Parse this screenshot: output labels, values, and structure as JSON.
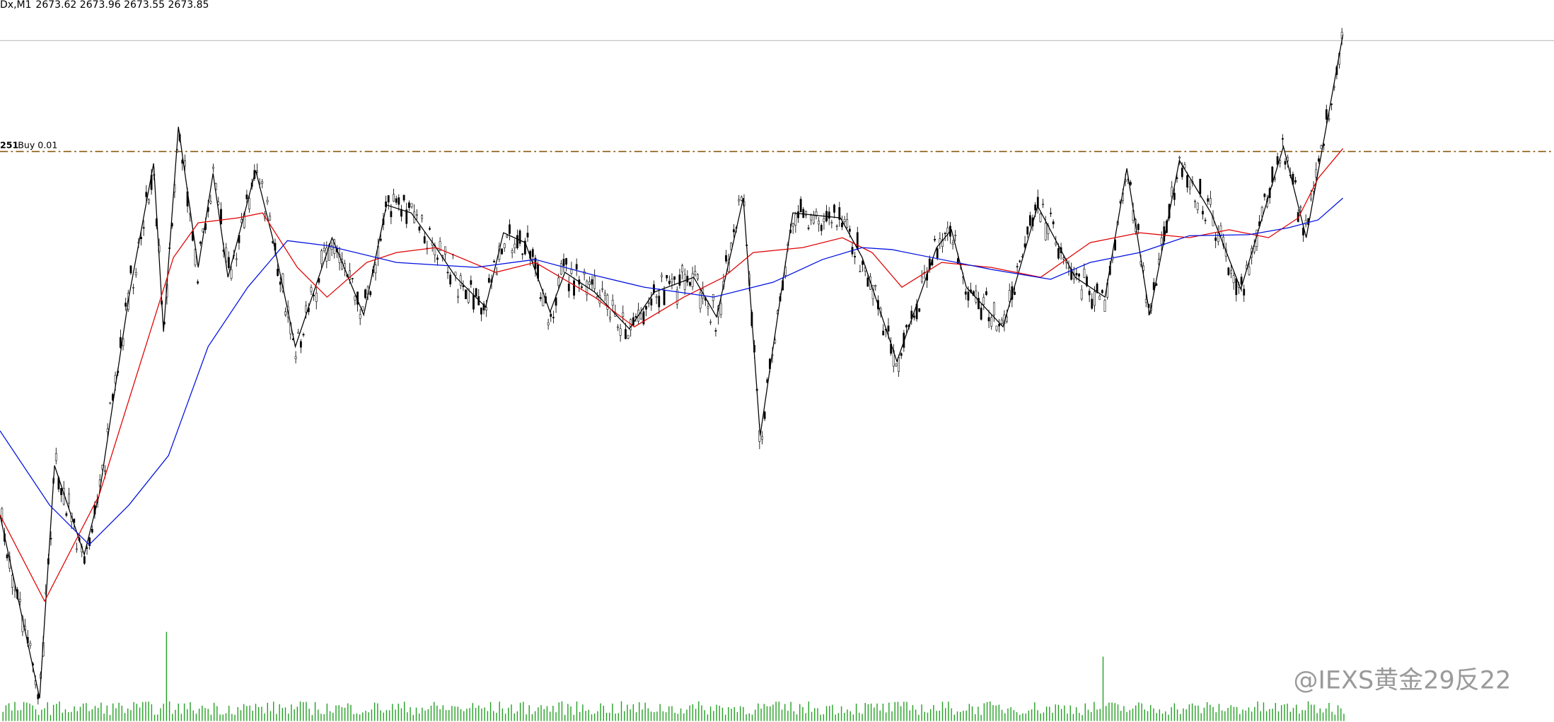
{
  "header": {
    "symbol": "Dx,M1",
    "ohlc": "2673.62 2673.96 2673.55 2673.85"
  },
  "order_line": {
    "price": "251",
    "label": "Buy 0.01"
  },
  "watermark": "@IEXS黄金29反22"
}
